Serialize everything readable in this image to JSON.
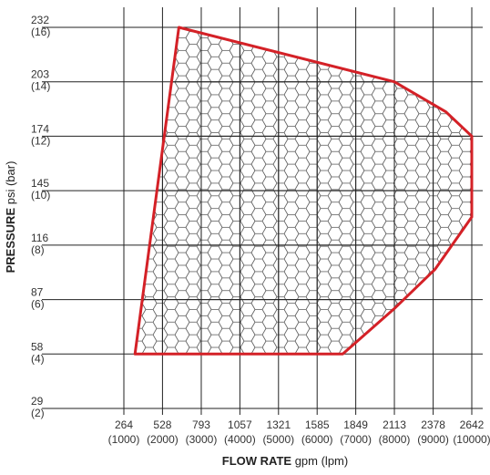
{
  "chart_data": {
    "type": "area",
    "xlabel": {
      "bold": "FLOW RATE",
      "rest": " gpm (lpm)"
    },
    "ylabel": {
      "bold": "PRESSURE",
      "rest": " psi (bar)"
    },
    "xlim": [
      0,
      2642
    ],
    "ylim": [
      0,
      232
    ],
    "grid": true,
    "x_ticks": [
      {
        "value": 264,
        "primary": "264",
        "secondary": "(1000)"
      },
      {
        "value": 528,
        "primary": "528",
        "secondary": "(2000)"
      },
      {
        "value": 793,
        "primary": "793",
        "secondary": "(3000)"
      },
      {
        "value": 1057,
        "primary": "1057",
        "secondary": "(4000)"
      },
      {
        "value": 1321,
        "primary": "1321",
        "secondary": "(5000)"
      },
      {
        "value": 1585,
        "primary": "1585",
        "secondary": "(6000)"
      },
      {
        "value": 1849,
        "primary": "1849",
        "secondary": "(7000)"
      },
      {
        "value": 2113,
        "primary": "2113",
        "secondary": "(8000)"
      },
      {
        "value": 2378,
        "primary": "2378",
        "secondary": "(9000)"
      },
      {
        "value": 2642,
        "primary": "2642",
        "secondary": "(10000)"
      }
    ],
    "y_ticks": [
      {
        "value": 29,
        "primary": "29",
        "secondary": "(2)"
      },
      {
        "value": 58,
        "primary": "58",
        "secondary": "(4)"
      },
      {
        "value": 87,
        "primary": "87",
        "secondary": "(6)"
      },
      {
        "value": 116,
        "primary": "116",
        "secondary": "(8)"
      },
      {
        "value": 145,
        "primary": "145",
        "secondary": "(10)"
      },
      {
        "value": 174,
        "primary": "174",
        "secondary": "(12)"
      },
      {
        "value": 203,
        "primary": "203",
        "secondary": "(14)"
      },
      {
        "value": 232,
        "primary": "232",
        "secondary": "(16)"
      }
    ],
    "region": [
      {
        "x": 340,
        "y": 58
      },
      {
        "x": 640,
        "y": 232
      },
      {
        "x": 2113,
        "y": 203
      },
      {
        "x": 2465,
        "y": 187
      },
      {
        "x": 2642,
        "y": 174
      },
      {
        "x": 2642,
        "y": 131
      },
      {
        "x": 2390,
        "y": 103
      },
      {
        "x": 2110,
        "y": 82
      },
      {
        "x": 1760,
        "y": 58
      }
    ],
    "region_fill": "honeycomb",
    "colors": {
      "outline": "#d42127",
      "grid": "#222222",
      "hex": "#555555"
    }
  }
}
